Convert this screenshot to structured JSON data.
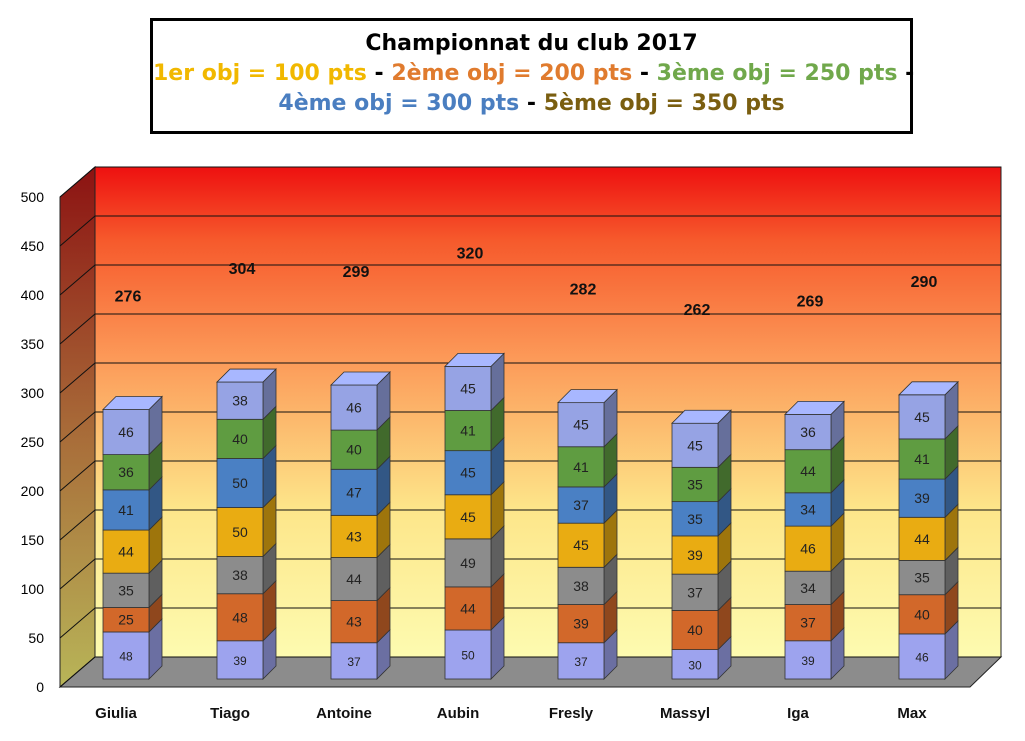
{
  "chart_data": {
    "type": "bar",
    "stacked": true,
    "three_d": true,
    "title": "Championnat du club 2017",
    "subtitle_parts": [
      {
        "text": "1er obj = 100 pts",
        "color": "#f1b800"
      },
      {
        "text": "2ème obj = 200 pts",
        "color": "#e07b2e"
      },
      {
        "text": "3ème obj = 250 pts",
        "color": "#70a84b"
      },
      {
        "text": "4ème obj = 300 pts",
        "color": "#4a7ec0"
      },
      {
        "text": "5ème obj = 350 pts",
        "color": "#7a5e10"
      }
    ],
    "separator": "-",
    "categories": [
      "Giulia",
      "Tiago",
      "Antoine",
      "Aubin",
      "Fresly",
      "Massyl",
      "Iga",
      "Max"
    ],
    "series": [
      {
        "values": [
          48,
          39,
          37,
          50,
          37,
          30,
          39,
          46
        ],
        "color": "#9da3ee"
      },
      {
        "values": [
          25,
          48,
          43,
          44,
          39,
          40,
          37,
          40
        ],
        "color": "#d2682a"
      },
      {
        "values": [
          35,
          38,
          44,
          49,
          38,
          37,
          34,
          35
        ],
        "color": "#8c8c8c"
      },
      {
        "values": [
          44,
          50,
          43,
          45,
          45,
          39,
          46,
          44
        ],
        "color": "#e9ac12"
      },
      {
        "values": [
          41,
          50,
          47,
          45,
          37,
          35,
          34,
          39
        ],
        "color": "#4a80c4"
      },
      {
        "values": [
          36,
          40,
          40,
          41,
          41,
          35,
          44,
          41
        ],
        "color": "#5f9c41"
      },
      {
        "values": [
          46,
          38,
          46,
          45,
          45,
          45,
          36,
          45
        ],
        "color": "#96a3e4"
      }
    ],
    "totals": [
      276,
      304,
      299,
      320,
      282,
      262,
      269,
      290
    ],
    "yticks": [
      0,
      50,
      100,
      150,
      200,
      250,
      300,
      350,
      400,
      450,
      500
    ],
    "ylim": [
      0,
      500
    ],
    "grid": true,
    "legend": "none"
  }
}
